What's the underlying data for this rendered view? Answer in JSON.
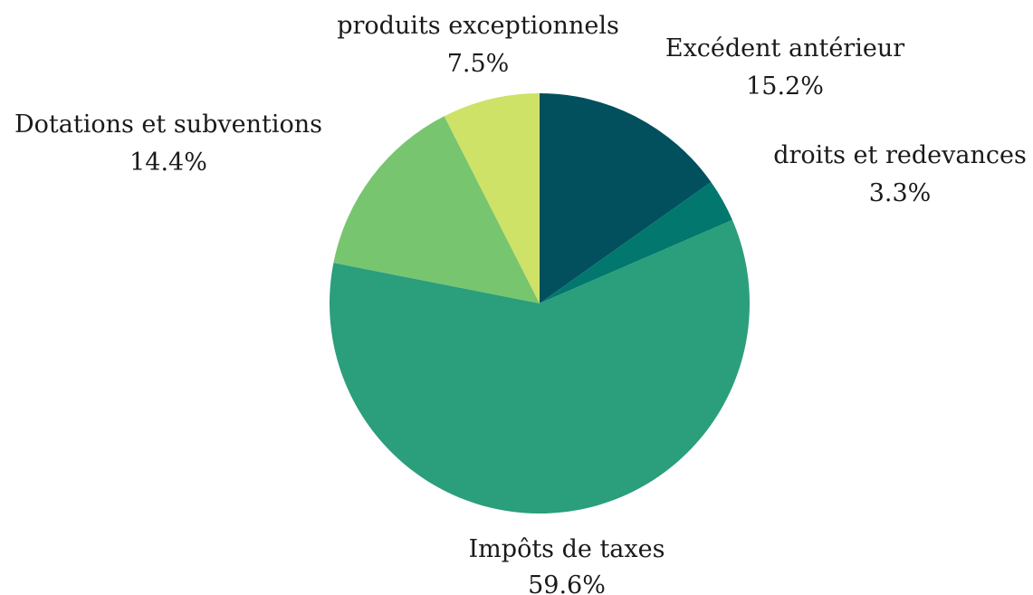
{
  "chart_data": {
    "type": "pie",
    "start_angle_deg": 0,
    "direction": "clockwise",
    "slices": [
      {
        "name": "Excédent antérieur",
        "value": 15.2,
        "value_label": "15.2%",
        "color": "#02505d"
      },
      {
        "name": "droits et redevances",
        "value": 3.3,
        "value_label": "3.3%",
        "color": "#02776e"
      },
      {
        "name": "Impôts de taxes",
        "value": 59.6,
        "value_label": "59.6%",
        "color": "#2b9e7b"
      },
      {
        "name": "Dotations et subventions",
        "value": 14.4,
        "value_label": "14.4%",
        "color": "#78c56f"
      },
      {
        "name": "produits exceptionnels",
        "value": 7.5,
        "value_label": "7.5%",
        "color": "#cde267"
      }
    ]
  }
}
